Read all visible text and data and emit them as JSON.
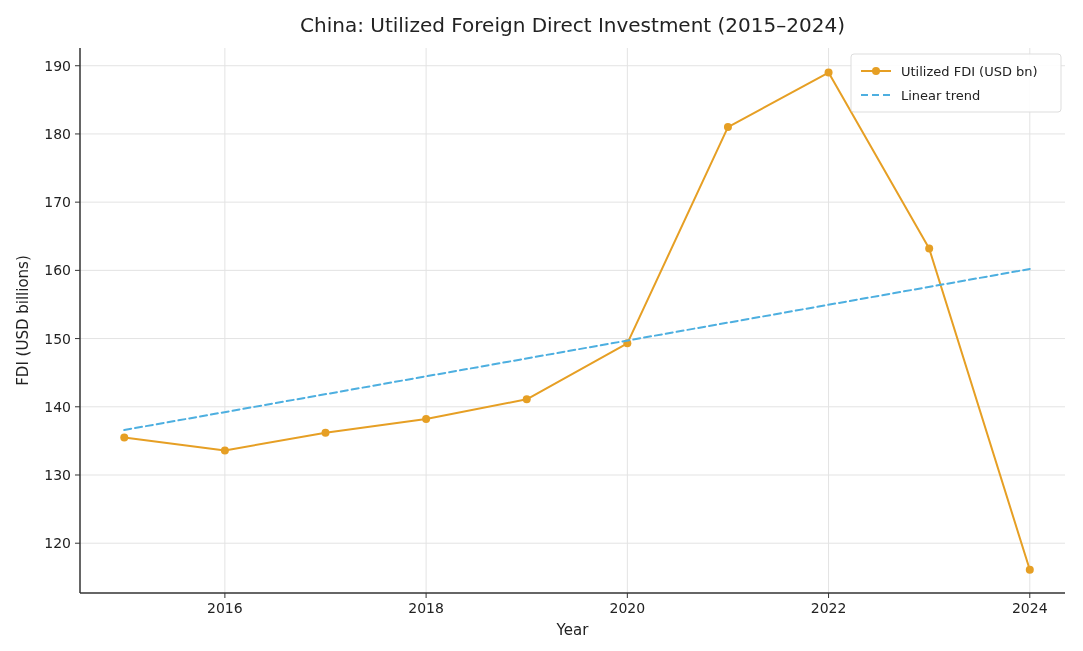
{
  "chart_data": {
    "type": "line",
    "title": "China: Utilized Foreign Direct Investment (2015–2024)",
    "xlabel": "Year",
    "ylabel": "FDI (USD billions)",
    "x": [
      2015,
      2016,
      2017,
      2018,
      2019,
      2020,
      2021,
      2022,
      2023,
      2024
    ],
    "series": [
      {
        "name": "Utilized FDI (USD bn)",
        "color": "#e69f24",
        "values": [
          135.5,
          133.6,
          136.2,
          138.2,
          141.1,
          149.3,
          181.0,
          189.0,
          163.2,
          116.1
        ],
        "marker": "circle",
        "line_style": "solid"
      },
      {
        "name": "Linear trend",
        "color": "#4dafe0",
        "x": [
          2015,
          2024
        ],
        "values": [
          136.6,
          160.2
        ],
        "marker": "none",
        "line_style": "dashed"
      }
    ],
    "xlim": [
      2014.56,
      2024.35
    ],
    "ylim": [
      112.7,
      192.6
    ],
    "xticks": [
      2016,
      2018,
      2020,
      2022,
      2024
    ],
    "yticks": [
      120,
      130,
      140,
      150,
      160,
      170,
      180,
      190
    ],
    "grid": true,
    "legend": "top right"
  }
}
